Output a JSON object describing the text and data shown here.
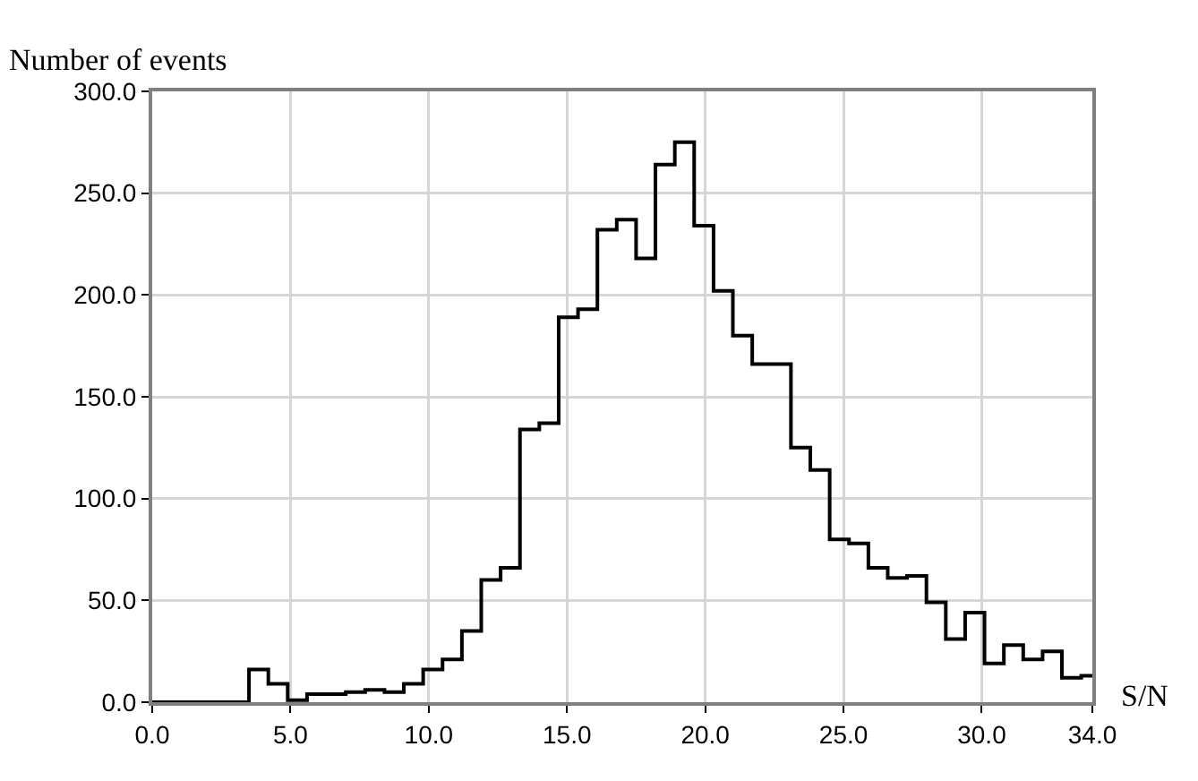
{
  "chart_data": {
    "type": "histogram",
    "xlabel": "S/N",
    "ylabel": "Number of events",
    "color": "#000000",
    "bins": [
      0,
      0.7,
      1.4,
      2.1,
      2.8,
      3.5,
      4.2,
      4.9,
      5.6,
      6.3,
      7,
      7.7,
      8.4,
      9.1,
      9.8,
      10.5,
      11.2,
      11.9,
      12.6,
      13.3,
      14,
      14.7,
      15.4,
      16.1,
      16.8,
      17.5,
      18.2,
      18.9,
      19.6,
      20.3,
      21,
      21.7,
      22.4,
      23.1,
      23.8,
      24.5,
      25.2,
      25.9,
      26.6,
      27.3,
      28,
      28.7,
      29.4,
      30.1,
      30.8,
      31.5,
      32.2,
      32.9,
      33.6,
      34
    ],
    "values": [
      0,
      0,
      0,
      0,
      0,
      16,
      9,
      1,
      4,
      4,
      5,
      6,
      5,
      9,
      16,
      21,
      35,
      60,
      66,
      134,
      137,
      189,
      193,
      232,
      237,
      218,
      264,
      275,
      234,
      202,
      180,
      166,
      166,
      125,
      114,
      80,
      78,
      66,
      61,
      62,
      49,
      31,
      44,
      19,
      28,
      21,
      25,
      12,
      13
    ],
    "xlim": [
      0,
      34
    ],
    "xticks": [
      {
        "value": 0,
        "label": "0.0"
      },
      {
        "value": 5,
        "label": "5.0"
      },
      {
        "value": 10,
        "label": "10.0"
      },
      {
        "value": 15,
        "label": "15.0"
      },
      {
        "value": 20,
        "label": "20.0"
      },
      {
        "value": 25,
        "label": "25.0"
      },
      {
        "value": 30,
        "label": "30.0"
      },
      {
        "value": 34,
        "label": "34.0"
      }
    ],
    "ylim": [
      0,
      300
    ],
    "yticks": [
      {
        "value": 0,
        "label": "0.0"
      },
      {
        "value": 50,
        "label": "50.0"
      },
      {
        "value": 100,
        "label": "100.0"
      },
      {
        "value": 150,
        "label": "150.0"
      },
      {
        "value": 200,
        "label": "200.0"
      },
      {
        "value": 250,
        "label": "250.0"
      },
      {
        "value": 300,
        "label": "300.0"
      }
    ],
    "grid": true
  }
}
